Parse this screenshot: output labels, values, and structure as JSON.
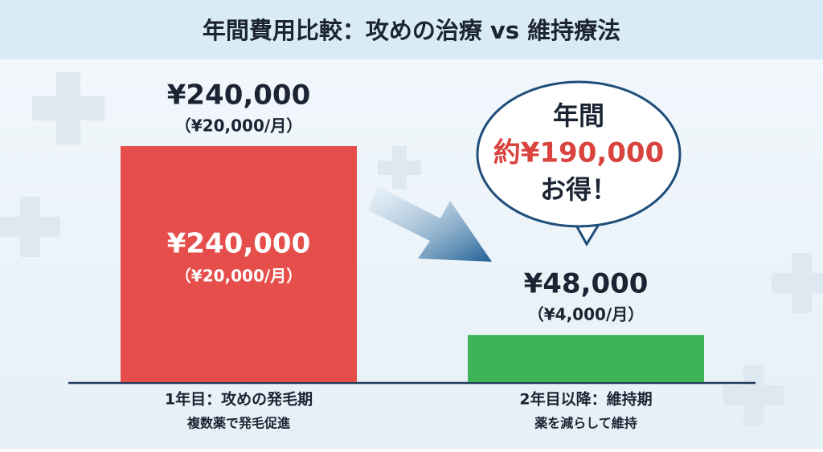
{
  "chart_data": {
    "type": "bar",
    "title": "年間費用比較：攻めの治療 vs 維持療法",
    "categories": [
      "1年目：攻めの発毛期",
      "2年目以降：維持期"
    ],
    "category_notes": [
      "複数薬で発毛促進",
      "薬を減らして維持"
    ],
    "values": [
      240000,
      48000
    ],
    "value_labels": [
      "¥240,000",
      "¥48,000"
    ],
    "monthly_labels": [
      "（¥20,000/月）",
      "（¥4,000/月）"
    ],
    "colors": [
      "#e54e4a",
      "#3db35a"
    ],
    "ylim": [
      0,
      240000
    ],
    "callout": [
      "年間",
      "約¥190,000",
      "お得！"
    ]
  }
}
